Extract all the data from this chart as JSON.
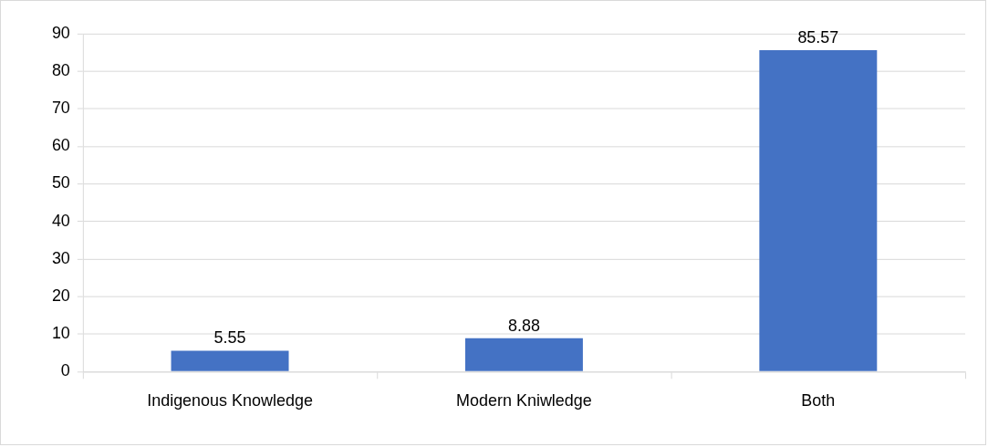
{
  "chart_data": {
    "type": "bar",
    "categories": [
      "Indigenous Knowledge",
      "Modern Kniwledge",
      "Both"
    ],
    "values": [
      5.55,
      8.88,
      85.57
    ],
    "color": "#4472c4",
    "ylim": [
      0,
      90
    ],
    "yticks": [
      0,
      10,
      20,
      30,
      40,
      50,
      60,
      70,
      80,
      90
    ],
    "grid": "y",
    "legend": false,
    "data_labels": true
  }
}
